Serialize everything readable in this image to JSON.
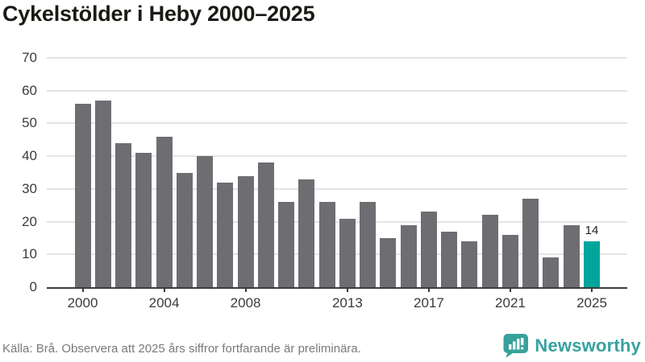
{
  "title": "Cykelstölder i Heby 2000–2025",
  "footer": {
    "source": "Källa: Brå. Observera att 2025 års siffror fortfarande är preliminära."
  },
  "logo": {
    "text": "Newsworthy",
    "icon": "bar-chart-speech-bubble-icon",
    "color": "#38a1a0"
  },
  "chart_data": {
    "type": "bar",
    "title": "Cykelstölder i Heby 2000–2025",
    "categories": [
      "2000",
      "2001",
      "2002",
      "2003",
      "2004",
      "2005",
      "2006",
      "2007",
      "2008",
      "2009",
      "2010",
      "2011",
      "2012",
      "2013",
      "2014",
      "2015",
      "2016",
      "2017",
      "2018",
      "2019",
      "2020",
      "2021",
      "2022",
      "2023",
      "2024",
      "2025"
    ],
    "values": [
      56,
      57,
      44,
      41,
      46,
      35,
      40,
      32,
      34,
      38,
      26,
      33,
      26,
      21,
      26,
      15,
      19,
      23,
      17,
      14,
      22,
      16,
      27,
      9,
      19,
      14
    ],
    "highlight_category": "2025",
    "data_label": {
      "category": "2025",
      "text": "14"
    },
    "x_tick_labels": [
      "2000",
      "2004",
      "2008",
      "2013",
      "2017",
      "2021",
      "2025"
    ],
    "y_ticks": [
      0,
      10,
      20,
      30,
      40,
      50,
      60,
      70
    ],
    "ylim": [
      0,
      70
    ],
    "xlabel": "",
    "ylabel": "",
    "grid": "horizontal",
    "legend": "none",
    "colors": {
      "bar": "#6d6d72",
      "highlight": "#00a59b",
      "grid": "#e4e4e4",
      "axis": "#3d3d3d",
      "tick_text": "#3b3b3b",
      "title_text": "#1a1a15",
      "footer_text": "#7a7a7a"
    }
  }
}
